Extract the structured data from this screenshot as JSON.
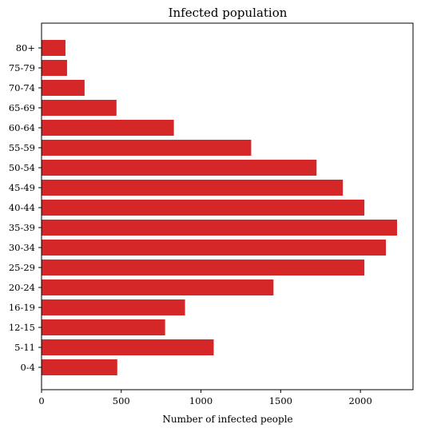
{
  "chart_data": {
    "type": "bar",
    "orientation": "horizontal",
    "title": "Infected population",
    "xlabel": "Number of infected people",
    "ylabel": "",
    "categories": [
      "0-4",
      "5-11",
      "12-15",
      "16-19",
      "20-24",
      "25-29",
      "30-34",
      "35-39",
      "40-44",
      "45-49",
      "50-54",
      "55-59",
      "60-64",
      "65-69",
      "70-74",
      "75-79",
      "80+"
    ],
    "values": [
      475,
      1080,
      775,
      900,
      1455,
      2025,
      2160,
      2230,
      2025,
      1890,
      1725,
      1315,
      830,
      470,
      270,
      160,
      150
    ],
    "xlim": [
      0,
      2330
    ],
    "xticks": [
      0,
      500,
      1000,
      1500,
      2000
    ],
    "grid": false,
    "bar_color": "#d62728"
  }
}
